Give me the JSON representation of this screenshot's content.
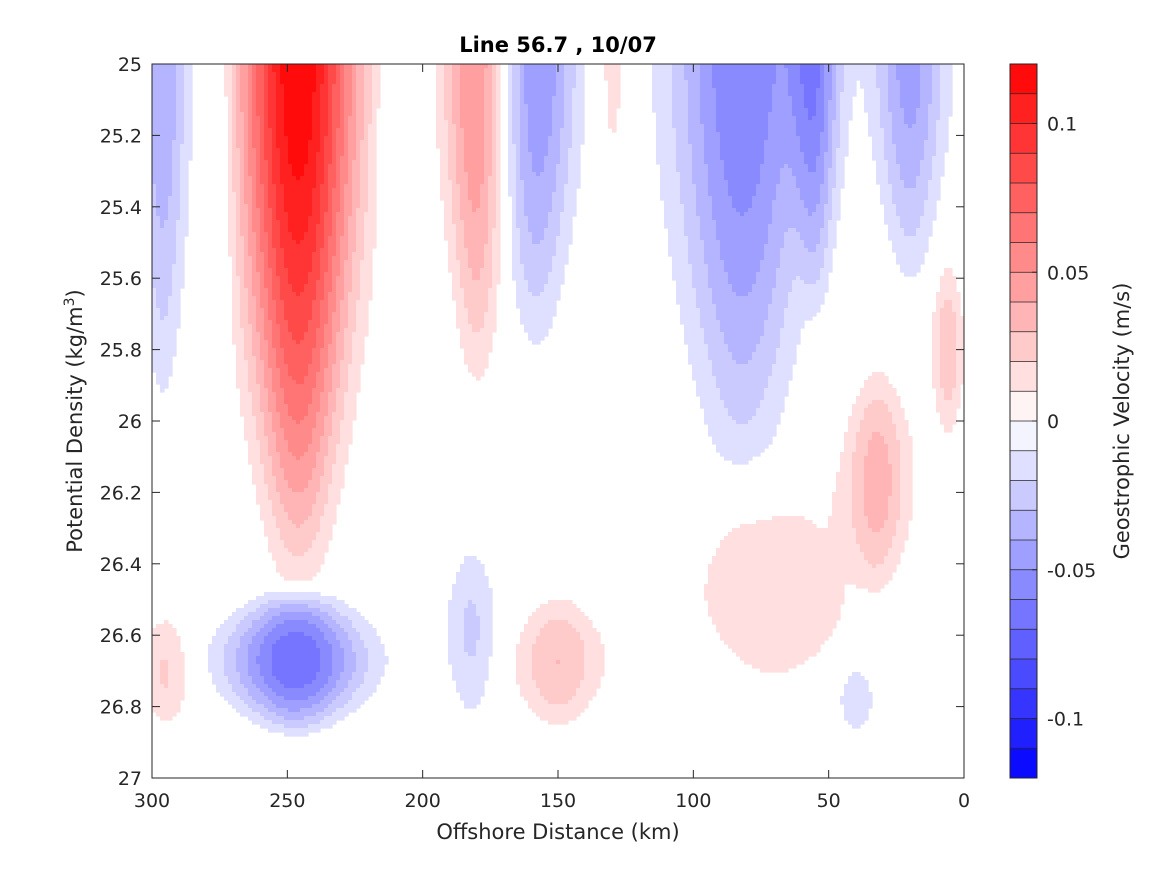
{
  "chart_data": {
    "type": "contour",
    "title": "Line 56.7 , 10/07",
    "xlabel": "Offshore Distance (km)",
    "ylabel": "Potential Density (kg/m",
    "ylabel_sup": "3",
    "ylabel_end": ")",
    "colorbar_label": "Geostrophic Velocity (m/s)",
    "x_reversed": true,
    "y_reversed": true,
    "xlim": [
      0,
      300
    ],
    "ylim": [
      25,
      27
    ],
    "x_ticks": [
      300,
      250,
      200,
      150,
      100,
      50,
      0
    ],
    "x_tick_labels": [
      "300",
      "250",
      "200",
      "150",
      "100",
      "50",
      "0"
    ],
    "y_ticks": [
      25,
      25.2,
      25.4,
      25.6,
      25.8,
      26,
      26.2,
      26.4,
      26.6,
      26.8,
      27
    ],
    "y_tick_labels": [
      "25",
      "25.2",
      "25.4",
      "25.6",
      "25.8",
      "26",
      "26.2",
      "26.4",
      "26.6",
      "26.8",
      "27"
    ],
    "clim": [
      -0.12,
      0.12
    ],
    "contour_step": 0.01,
    "colorbar_ticks": [
      0.1,
      0.05,
      0,
      -0.05,
      -0.1
    ],
    "colorbar_tick_labels": [
      "0.1",
      "0.05",
      "0",
      "-0.05",
      "-0.1"
    ],
    "data_sigma_max": 26.9,
    "features": [
      {
        "x": 246,
        "sigma_top": 25,
        "sigma_bottom": 26.55,
        "peak": 0.12,
        "half_width": 21
      },
      {
        "x": 247,
        "sigma_top": 26.44,
        "sigma_bottom": 26.9,
        "peak": -0.07,
        "half_width": 24
      },
      {
        "x": 180,
        "sigma_top": 25,
        "sigma_bottom": 26.0,
        "peak": 0.055,
        "half_width": 12
      },
      {
        "x": 158,
        "sigma_top": 25,
        "sigma_bottom": 25.9,
        "peak": -0.05,
        "half_width": 15
      },
      {
        "x": 130,
        "sigma_top": 25,
        "sigma_bottom": 25.55,
        "peak": 0.015,
        "half_width": 8
      },
      {
        "x": 82,
        "sigma_top": 25,
        "sigma_bottom": 26.3,
        "peak": -0.06,
        "half_width": 25
      },
      {
        "x": 55,
        "sigma_top": 25,
        "sigma_bottom": 25.75,
        "peak": -0.045,
        "half_width": 9
      },
      {
        "x": 20,
        "sigma_top": 25,
        "sigma_bottom": 25.7,
        "peak": -0.045,
        "half_width": 13
      },
      {
        "x": 296,
        "sigma_top": 25,
        "sigma_bottom": 26.1,
        "peak": -0.04,
        "half_width": 10
      },
      {
        "x": 275,
        "sigma_top": 25,
        "sigma_bottom": 26.1,
        "peak": -0.015,
        "half_width": 7
      },
      {
        "x": 210,
        "sigma_top": 25,
        "sigma_bottom": 25.9,
        "peak": -0.012,
        "half_width": 8
      },
      {
        "x": 32,
        "sigma_top": 25.8,
        "sigma_bottom": 26.5,
        "peak": 0.035,
        "half_width": 12
      },
      {
        "x": 6,
        "sigma_top": 25.5,
        "sigma_bottom": 26.1,
        "peak": 0.028,
        "half_width": 6
      },
      {
        "x": 70,
        "sigma_top": 26.05,
        "sigma_bottom": 26.9,
        "peak": 0.015,
        "half_width": 40
      },
      {
        "x": 150,
        "sigma_top": 26.45,
        "sigma_bottom": 26.9,
        "peak": 0.03,
        "half_width": 16
      },
      {
        "x": 182,
        "sigma_top": 26.28,
        "sigma_bottom": 26.9,
        "peak": -0.022,
        "half_width": 10
      },
      {
        "x": 295,
        "sigma_top": 26.5,
        "sigma_bottom": 26.9,
        "peak": 0.022,
        "half_width": 10
      },
      {
        "x": 40,
        "sigma_top": 26.65,
        "sigma_bottom": 26.9,
        "peak": -0.022,
        "half_width": 7
      }
    ]
  },
  "colors": {
    "negative_max": "#0000ff",
    "zero": "#ffffff",
    "positive_max": "#ff0000",
    "axis": "#262626"
  }
}
